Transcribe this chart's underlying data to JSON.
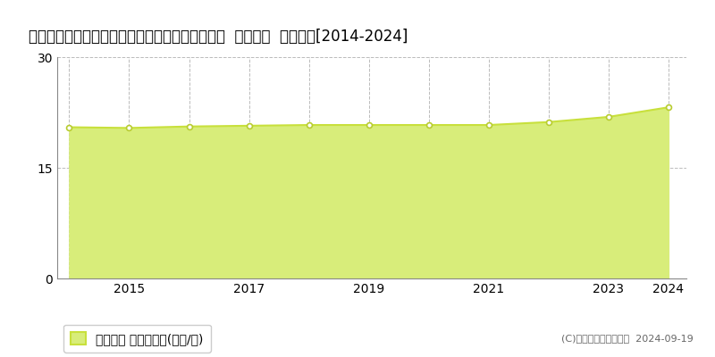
{
  "title": "愛知県愛知郡東郷町大字諸輪字観音畑６０番１外  基準地価  地価推移[2014-2024]",
  "years": [
    2014,
    2015,
    2016,
    2017,
    2018,
    2019,
    2020,
    2021,
    2022,
    2023,
    2024
  ],
  "values": [
    20.5,
    20.4,
    20.6,
    20.7,
    20.8,
    20.8,
    20.8,
    20.8,
    21.2,
    21.9,
    23.2
  ],
  "line_color": "#c8e03c",
  "fill_color": "#d8ed7a",
  "fill_alpha": 1.0,
  "marker_color": "white",
  "marker_edge_color": "#b8cc30",
  "ylim": [
    0,
    30
  ],
  "xlim": [
    2013.8,
    2024.3
  ],
  "yticks": [
    0,
    15,
    30
  ],
  "xticks": [
    2015,
    2017,
    2019,
    2021,
    2023,
    2024
  ],
  "grid_color": "#bbbbbb",
  "background_color": "#ffffff",
  "legend_label": "基準地価 平均坪単価(万円/坪)",
  "copyright_text": "(C)土地価格ドットコム  2024-09-19",
  "title_fontsize": 12,
  "axis_fontsize": 10,
  "legend_fontsize": 10
}
